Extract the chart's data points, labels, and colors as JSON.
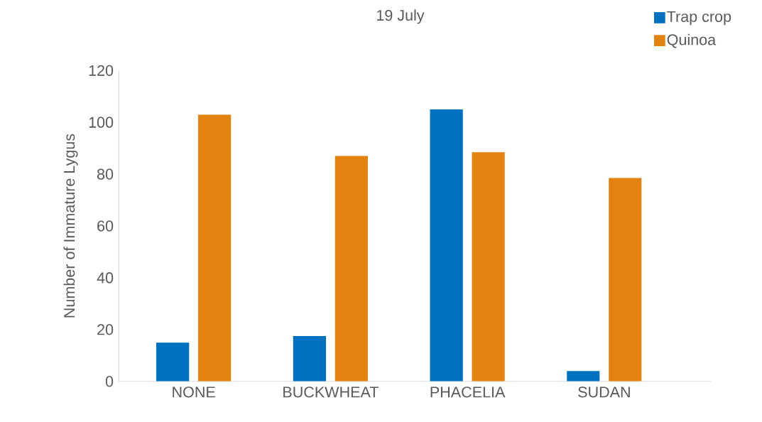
{
  "chart_data": {
    "type": "bar",
    "title": "19 July",
    "ylabel": "Number of Immature Lygus",
    "categories": [
      "NONE",
      "BUCKWHEAT",
      "PHACELIA",
      "SUDAN"
    ],
    "series": [
      {
        "name": "Trap crop",
        "color": "#0070c0",
        "values": [
          15,
          17.5,
          105,
          4
        ]
      },
      {
        "name": "Quinoa",
        "color": "#e3820f",
        "values": [
          103,
          87,
          88.5,
          78.5
        ]
      }
    ],
    "ylim": [
      0,
      120
    ],
    "yticks": [
      0,
      20,
      40,
      60,
      80,
      100,
      120
    ],
    "legend": "top right"
  }
}
